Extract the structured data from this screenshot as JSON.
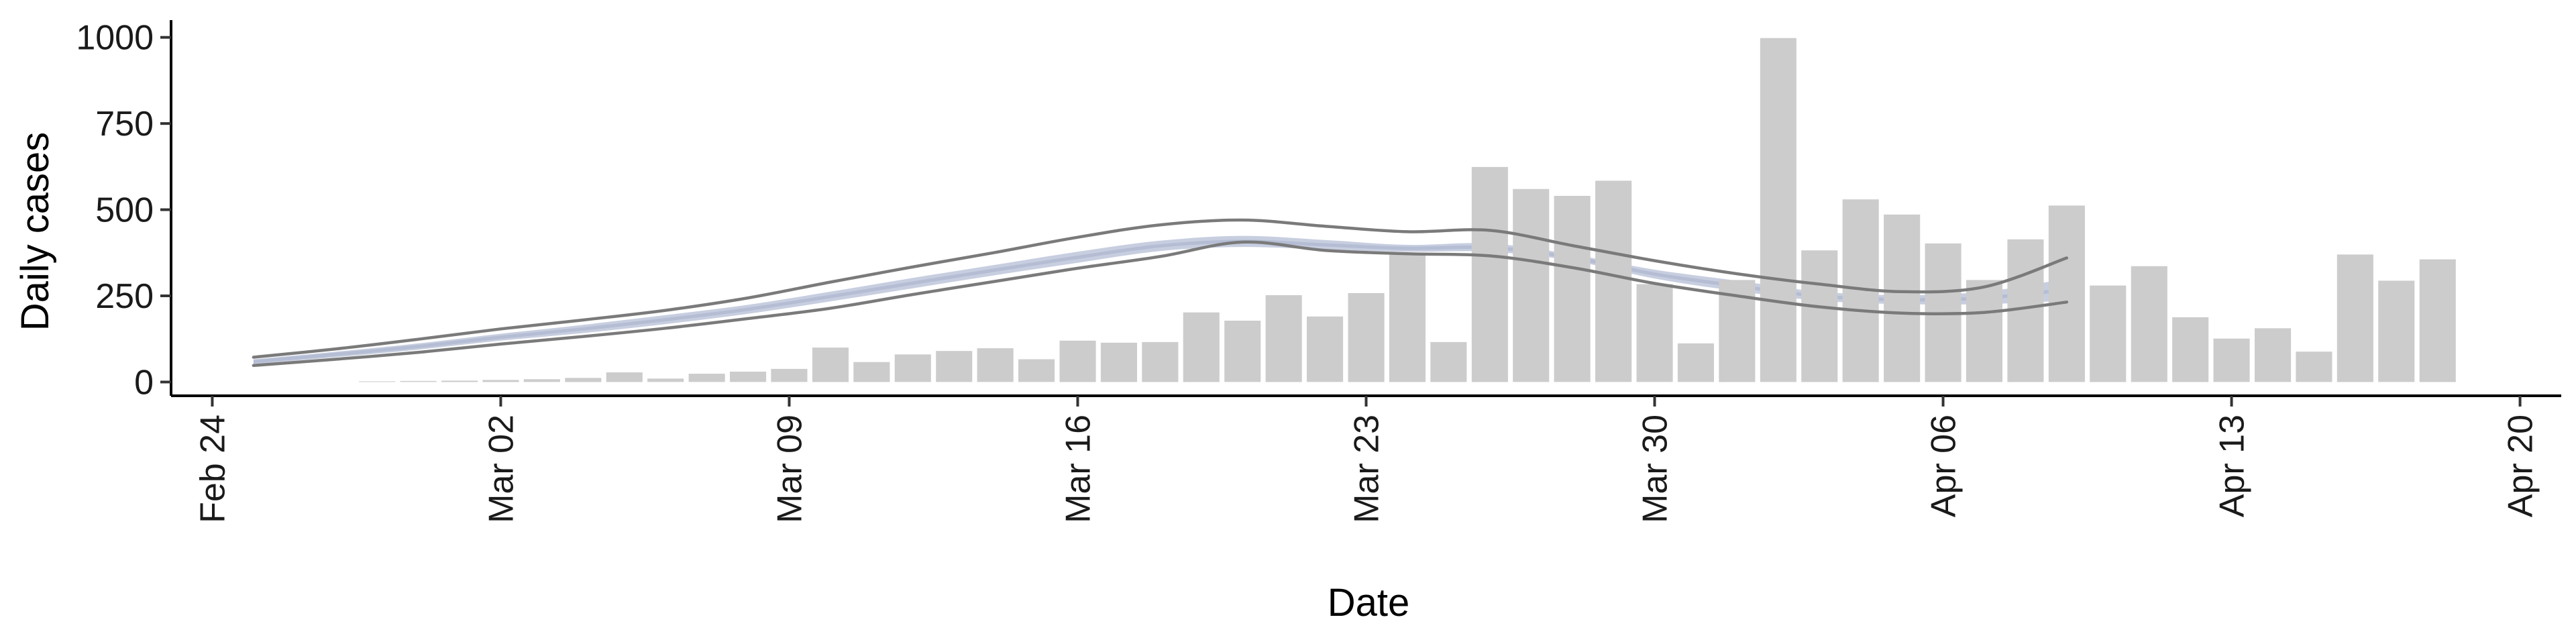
{
  "chart_data": {
    "type": "bar",
    "xlabel": "Date",
    "ylabel": "Daily cases",
    "x_axis": {
      "type": "date",
      "range": [
        "2020-02-23",
        "2020-04-21"
      ],
      "ticks": [
        {
          "date": "2020-02-24",
          "label": "Feb 24"
        },
        {
          "date": "2020-03-02",
          "label": "Mar 02"
        },
        {
          "date": "2020-03-09",
          "label": "Mar 09"
        },
        {
          "date": "2020-03-16",
          "label": "Mar 16"
        },
        {
          "date": "2020-03-23",
          "label": "Mar 23"
        },
        {
          "date": "2020-03-30",
          "label": "Mar 30"
        },
        {
          "date": "2020-04-06",
          "label": "Apr 06"
        },
        {
          "date": "2020-04-13",
          "label": "Apr 13"
        },
        {
          "date": "2020-04-20",
          "label": "Apr 20"
        }
      ]
    },
    "y_axis": {
      "range": [
        -40,
        1050
      ],
      "ticks": [
        0,
        250,
        500,
        750,
        1000
      ]
    },
    "grid": false,
    "legend": "none",
    "bars": {
      "color": "#cccccc",
      "dates": [
        "2020-02-28",
        "2020-02-29",
        "2020-03-01",
        "2020-03-02",
        "2020-03-03",
        "2020-03-04",
        "2020-03-05",
        "2020-03-06",
        "2020-03-07",
        "2020-03-08",
        "2020-03-09",
        "2020-03-10",
        "2020-03-11",
        "2020-03-12",
        "2020-03-13",
        "2020-03-14",
        "2020-03-15",
        "2020-03-16",
        "2020-03-17",
        "2020-03-18",
        "2020-03-19",
        "2020-03-20",
        "2020-03-21",
        "2020-03-22",
        "2020-03-23",
        "2020-03-24",
        "2020-03-25",
        "2020-03-26",
        "2020-03-27",
        "2020-03-28",
        "2020-03-29",
        "2020-03-30",
        "2020-03-31",
        "2020-04-01",
        "2020-04-02",
        "2020-04-03",
        "2020-04-04",
        "2020-04-05",
        "2020-04-06",
        "2020-04-07",
        "2020-04-08",
        "2020-04-09",
        "2020-04-10",
        "2020-04-11",
        "2020-04-12",
        "2020-04-13",
        "2020-04-14",
        "2020-04-15",
        "2020-04-16",
        "2020-04-17",
        "2020-04-18"
      ],
      "values": [
        2,
        3,
        4,
        6,
        8,
        12,
        28,
        10,
        24,
        30,
        38,
        100,
        58,
        80,
        90,
        98,
        66,
        120,
        114,
        116,
        202,
        178,
        252,
        190,
        258,
        370,
        116,
        624,
        560,
        540,
        584,
        284,
        112,
        296,
        998,
        382,
        530,
        486,
        402,
        296,
        414,
        512,
        280,
        336,
        188,
        126,
        156,
        88,
        370,
        294,
        356
      ]
    },
    "series": [
      {
        "style": "band",
        "color": "#b4bdd6",
        "dates": [
          "2020-02-25",
          "2020-02-27",
          "2020-02-29",
          "2020-03-02",
          "2020-03-04",
          "2020-03-06",
          "2020-03-08",
          "2020-03-10",
          "2020-03-12",
          "2020-03-14",
          "2020-03-16",
          "2020-03-18",
          "2020-03-20",
          "2020-03-22",
          "2020-03-24",
          "2020-03-26",
          "2020-03-28",
          "2020-03-30",
          "2020-04-01",
          "2020-04-03",
          "2020-04-05",
          "2020-04-07",
          "2020-04-09"
        ],
        "upper": [
          66,
          88,
          112,
          140,
          166,
          194,
          224,
          262,
          302,
          340,
          378,
          410,
          424,
          412,
          398,
          402,
          370,
          326,
          294,
          262,
          252,
          262,
          300
        ],
        "lower": [
          52,
          72,
          94,
          120,
          142,
          168,
          198,
          234,
          272,
          310,
          346,
          380,
          392,
          384,
          378,
          378,
          352,
          300,
          264,
          236,
          226,
          226,
          236
        ]
      },
      {
        "style": "line",
        "color": "#7a7a7a",
        "dates": [
          "2020-02-25",
          "2020-02-27",
          "2020-02-29",
          "2020-03-02",
          "2020-03-04",
          "2020-03-06",
          "2020-03-08",
          "2020-03-10",
          "2020-03-12",
          "2020-03-14",
          "2020-03-16",
          "2020-03-18",
          "2020-03-20",
          "2020-03-22",
          "2020-03-24",
          "2020-03-26",
          "2020-03-28",
          "2020-03-30",
          "2020-04-01",
          "2020-04-03",
          "2020-04-05",
          "2020-04-07",
          "2020-04-09"
        ],
        "values": [
          72,
          96,
          124,
          154,
          180,
          208,
          244,
          290,
          334,
          376,
          420,
          456,
          470,
          452,
          436,
          440,
          396,
          352,
          314,
          284,
          262,
          276,
          360
        ]
      },
      {
        "style": "line",
        "color": "#7a7a7a",
        "dates": [
          "2020-02-25",
          "2020-02-27",
          "2020-02-29",
          "2020-03-02",
          "2020-03-04",
          "2020-03-06",
          "2020-03-08",
          "2020-03-10",
          "2020-03-12",
          "2020-03-14",
          "2020-03-16",
          "2020-03-18",
          "2020-03-20",
          "2020-03-22",
          "2020-03-24",
          "2020-03-26",
          "2020-03-28",
          "2020-03-30",
          "2020-04-01",
          "2020-04-03",
          "2020-04-05",
          "2020-04-07",
          "2020-04-09"
        ],
        "values": [
          48,
          66,
          86,
          110,
          132,
          156,
          184,
          214,
          254,
          292,
          330,
          364,
          406,
          382,
          372,
          366,
          332,
          286,
          250,
          218,
          200,
          202,
          232
        ]
      }
    ]
  }
}
